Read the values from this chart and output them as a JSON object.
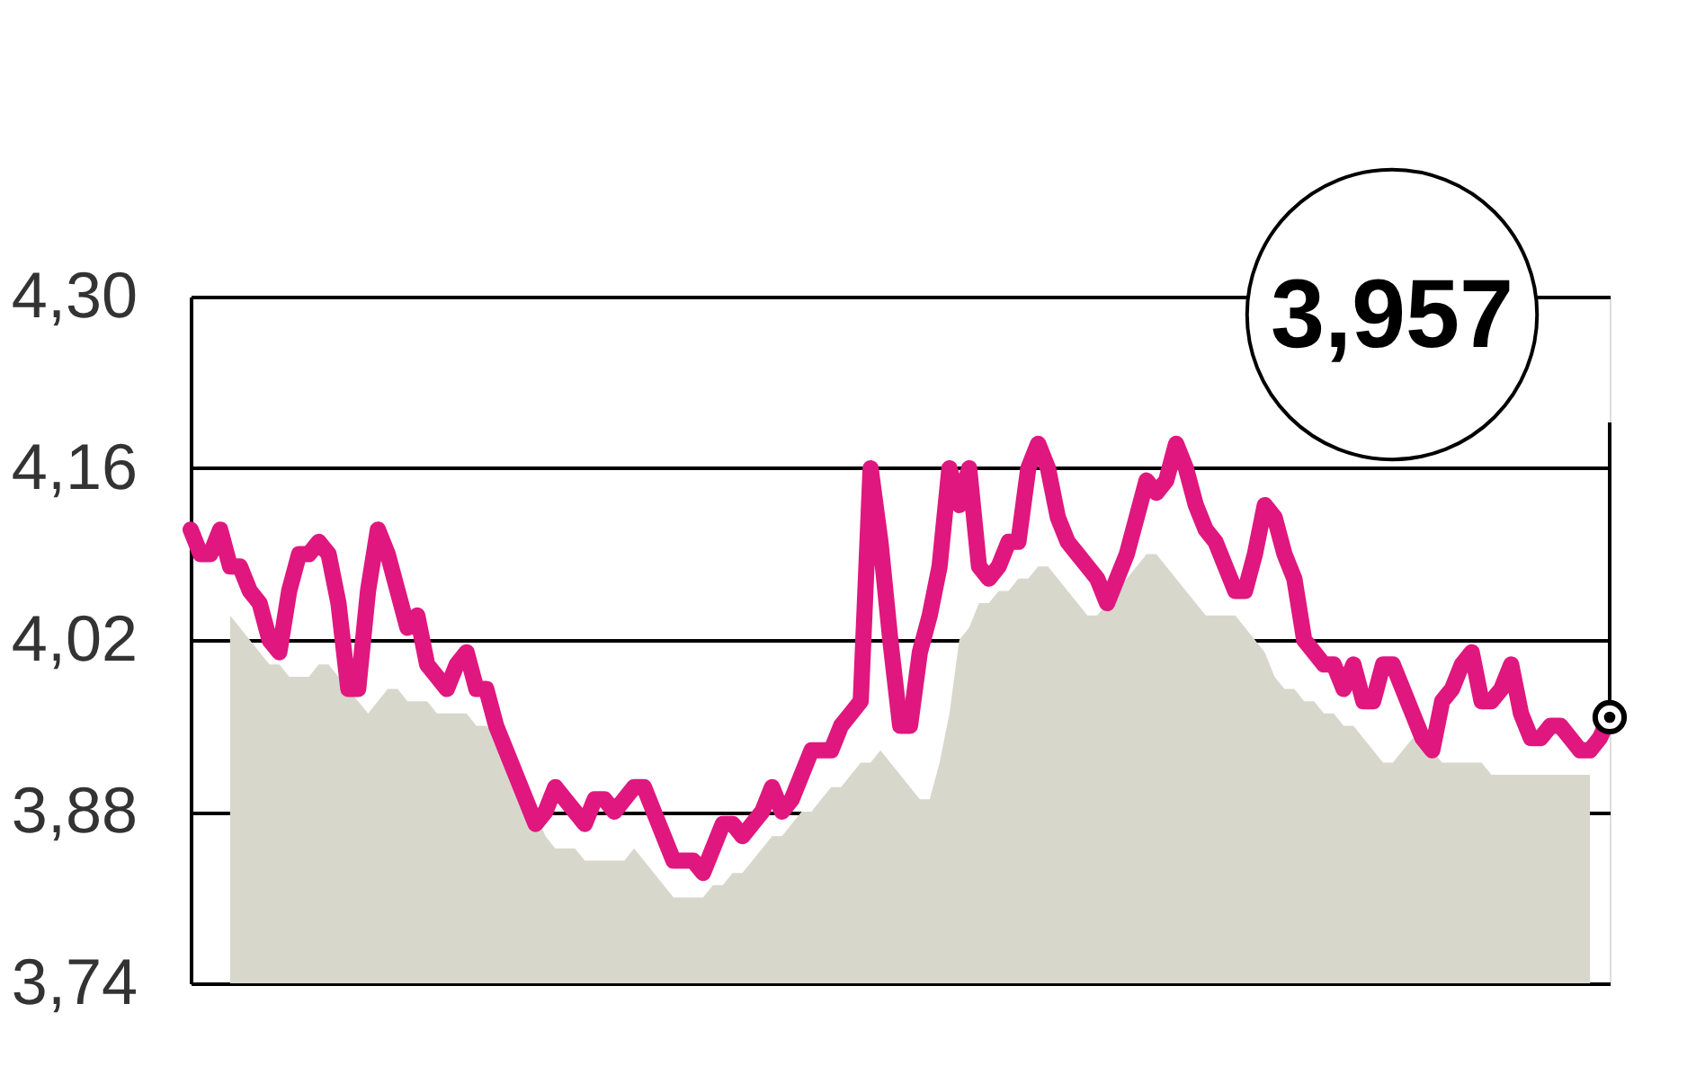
{
  "chart_data": {
    "type": "line",
    "categories": [
      null,
      null,
      null,
      null,
      null,
      null,
      null,
      null,
      null,
      null,
      null,
      null,
      null,
      null,
      null,
      null,
      null,
      null,
      null,
      null,
      null,
      null,
      null,
      null,
      null,
      null,
      null,
      null,
      null,
      null,
      null,
      null,
      null,
      null,
      null,
      null,
      null,
      null,
      null,
      null,
      null,
      null,
      null,
      null,
      null,
      null,
      null,
      null,
      null,
      null,
      null,
      null,
      null,
      null,
      null,
      null,
      null,
      null,
      null,
      null,
      null,
      null,
      null,
      null,
      null,
      null,
      null,
      null,
      null,
      null,
      null,
      null,
      null,
      null,
      null,
      null,
      null,
      null,
      null,
      null,
      null,
      null,
      null,
      null,
      null,
      null,
      null,
      null,
      null,
      null,
      null,
      null,
      null,
      null,
      null,
      null,
      null,
      null,
      null,
      null,
      null,
      null,
      null,
      null,
      null,
      null,
      null,
      null,
      null,
      null,
      null,
      null,
      null,
      null,
      null,
      null,
      null,
      null,
      null,
      null,
      null,
      null,
      null,
      null,
      null,
      null,
      null,
      null,
      null,
      null,
      null,
      null,
      null,
      null,
      null,
      null,
      null,
      null,
      null,
      null,
      null,
      null,
      null,
      null,
      null
    ],
    "series": [
      {
        "type": "area",
        "color": "#d8d7cc",
        "values": [
          null,
          null,
          null,
          null,
          4.04,
          4.03,
          4.02,
          4.01,
          4.0,
          4.0,
          3.99,
          3.99,
          3.99,
          4.0,
          4.0,
          3.99,
          3.98,
          3.97,
          3.96,
          3.97,
          3.98,
          3.98,
          3.97,
          3.97,
          3.97,
          3.96,
          3.96,
          3.96,
          3.96,
          3.95,
          3.95,
          3.94,
          3.93,
          3.91,
          3.9,
          3.88,
          3.86,
          3.85,
          3.85,
          3.85,
          3.84,
          3.84,
          3.84,
          3.84,
          3.84,
          3.85,
          3.84,
          3.83,
          3.82,
          3.81,
          3.81,
          3.81,
          3.81,
          3.82,
          3.82,
          3.83,
          3.83,
          3.84,
          3.85,
          3.86,
          3.86,
          3.87,
          3.88,
          3.88,
          3.89,
          3.9,
          3.9,
          3.91,
          3.92,
          3.92,
          3.93,
          3.92,
          3.91,
          3.9,
          3.89,
          3.89,
          3.92,
          3.96,
          4.02,
          4.03,
          4.05,
          4.05,
          4.06,
          4.06,
          4.07,
          4.07,
          4.08,
          4.08,
          4.07,
          4.06,
          4.05,
          4.04,
          4.04,
          4.05,
          4.06,
          4.07,
          4.08,
          4.09,
          4.09,
          4.08,
          4.07,
          4.06,
          4.05,
          4.04,
          4.04,
          4.04,
          4.04,
          4.03,
          4.02,
          4.01,
          3.99,
          3.98,
          3.98,
          3.97,
          3.97,
          3.96,
          3.96,
          3.95,
          3.95,
          3.94,
          3.93,
          3.92,
          3.92,
          3.93,
          3.94,
          3.94,
          3.93,
          3.92,
          3.92,
          3.92,
          3.92,
          3.92,
          3.91,
          3.91,
          3.91,
          3.91,
          3.91,
          3.91,
          3.91,
          3.91,
          3.91,
          3.91,
          3.91,
          null,
          null
        ]
      },
      {
        "color": "#e0177f",
        "values": [
          4.11,
          4.09,
          4.09,
          4.11,
          4.08,
          4.08,
          4.06,
          4.05,
          4.02,
          4.01,
          4.06,
          4.09,
          4.09,
          4.1,
          4.09,
          4.05,
          3.98,
          3.98,
          4.06,
          4.11,
          4.09,
          4.06,
          4.03,
          4.04,
          4.0,
          3.99,
          3.98,
          4.0,
          4.01,
          3.98,
          3.98,
          3.95,
          3.93,
          3.91,
          3.89,
          3.87,
          3.88,
          3.9,
          3.89,
          3.88,
          3.87,
          3.89,
          3.89,
          3.88,
          3.89,
          3.9,
          3.9,
          3.88,
          3.86,
          3.84,
          3.84,
          3.84,
          3.83,
          3.85,
          3.87,
          3.87,
          3.86,
          3.87,
          3.88,
          3.9,
          3.88,
          3.89,
          3.91,
          3.93,
          3.93,
          3.93,
          3.95,
          3.96,
          3.97,
          4.16,
          4.1,
          4.02,
          3.95,
          3.95,
          4.01,
          4.04,
          4.08,
          4.16,
          4.13,
          4.16,
          4.08,
          4.07,
          4.08,
          4.1,
          4.1,
          4.16,
          4.18,
          4.16,
          4.12,
          4.1,
          4.09,
          4.08,
          4.07,
          4.05,
          4.07,
          4.09,
          4.12,
          4.15,
          4.14,
          4.15,
          4.18,
          4.16,
          4.13,
          4.11,
          4.1,
          4.08,
          4.06,
          4.06,
          4.09,
          4.13,
          4.12,
          4.09,
          4.07,
          4.02,
          4.01,
          4.0,
          4.0,
          3.98,
          4.0,
          3.97,
          3.97,
          4.0,
          4.0,
          3.98,
          3.96,
          3.94,
          3.93,
          3.97,
          3.98,
          4.0,
          4.01,
          3.97,
          3.97,
          3.98,
          4.0,
          3.96,
          3.94,
          3.94,
          3.95,
          3.95,
          3.94,
          3.93,
          3.93,
          3.94,
          3.957
        ]
      }
    ],
    "ylim": [
      3.74,
      4.3
    ],
    "yticks": [
      {
        "value": 3.74,
        "label": "3,74"
      },
      {
        "value": 3.88,
        "label": "3,88"
      },
      {
        "value": 4.02,
        "label": "4,02"
      },
      {
        "value": 4.16,
        "label": "4,16"
      },
      {
        "value": 4.3,
        "label": "4,30"
      }
    ],
    "grid": "y",
    "tick_labels": "y",
    "annotations": [
      "3,957"
    ]
  }
}
